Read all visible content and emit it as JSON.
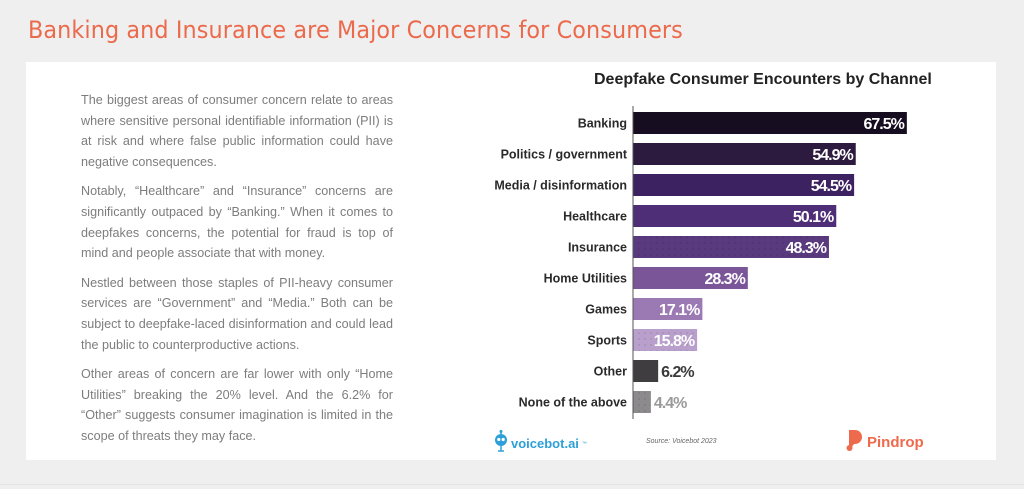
{
  "page": {
    "title": "Banking and Insurance are Major Concerns for Consumers"
  },
  "body_text": {
    "paragraphs": [
      "The biggest areas of consumer concern relate to areas where sensitive personal identifiable information (PII) is at risk and where false public information could have negative consequences.",
      "Notably, “Healthcare” and “Insurance” concerns are significantly outpaced by “Banking.” When it comes to deepfakes concerns, the potential for fraud is top of mind and people associate that with money.",
      "Nestled between those staples of PII-heavy consumer services are “Government” and “Media.” Both can be subject to deepfake-laced disinformation and could lead the public to counterproductive actions.",
      "Other areas of concern are far lower with only “Home Utilities” breaking the 20% level. And the 6.2% for “Other” suggests consumer imagination is limited in the scope of threats they may face."
    ]
  },
  "footer": {
    "source": "Source: Voicebot 2023",
    "left_logo": {
      "text": "voicebot.ai",
      "tm": "™",
      "icon": "robot-microphone-icon",
      "color": "#2da0d8"
    },
    "right_logo": {
      "text": "Pindrop",
      "icon": "pindrop-icon",
      "color": "#ee6a4c"
    }
  },
  "colors": {
    "title_accent": "#ec6a4c",
    "background": "#efefef",
    "card": "#ffffff"
  },
  "chart_data": {
    "type": "bar",
    "orientation": "horizontal",
    "title": "Deepfake Consumer Encounters by Channel",
    "xlabel": "",
    "ylabel": "",
    "xlim": [
      0,
      70
    ],
    "grid": false,
    "legend": "none",
    "unit": "%",
    "categories": [
      "Banking",
      "Politics / government",
      "Media / disinformation",
      "Healthcare",
      "Insurance",
      "Home Utilities",
      "Games",
      "Sports",
      "Other",
      "None of the above"
    ],
    "values": [
      67.5,
      54.9,
      54.5,
      50.1,
      48.3,
      28.3,
      17.1,
      15.8,
      6.2,
      4.4
    ],
    "labels": [
      "67.5%",
      "54.9%",
      "54.5%",
      "50.1%",
      "48.3%",
      "28.3%",
      "17.1%",
      "15.8%",
      "6.2%",
      "4.4%"
    ],
    "bar_colors": [
      "#170d20",
      "#2c1b3e",
      "#3c2260",
      "#4f2e78",
      "#5a3a7e",
      "#7a5597",
      "#9b7ab4",
      "#b9a0cc",
      "#403d40",
      "#8c8a8c"
    ],
    "label_colors": [
      "#ffffff",
      "#ffffff",
      "#ffffff",
      "#ffffff",
      "#ffffff",
      "#ffffff",
      "#ffffff",
      "#ffffff",
      "#3a3a3a",
      "#9a9a9a"
    ],
    "label_position": [
      "inside",
      "inside",
      "inside",
      "inside",
      "inside",
      "inside",
      "inside",
      "inside",
      "outside",
      "outside"
    ]
  }
}
